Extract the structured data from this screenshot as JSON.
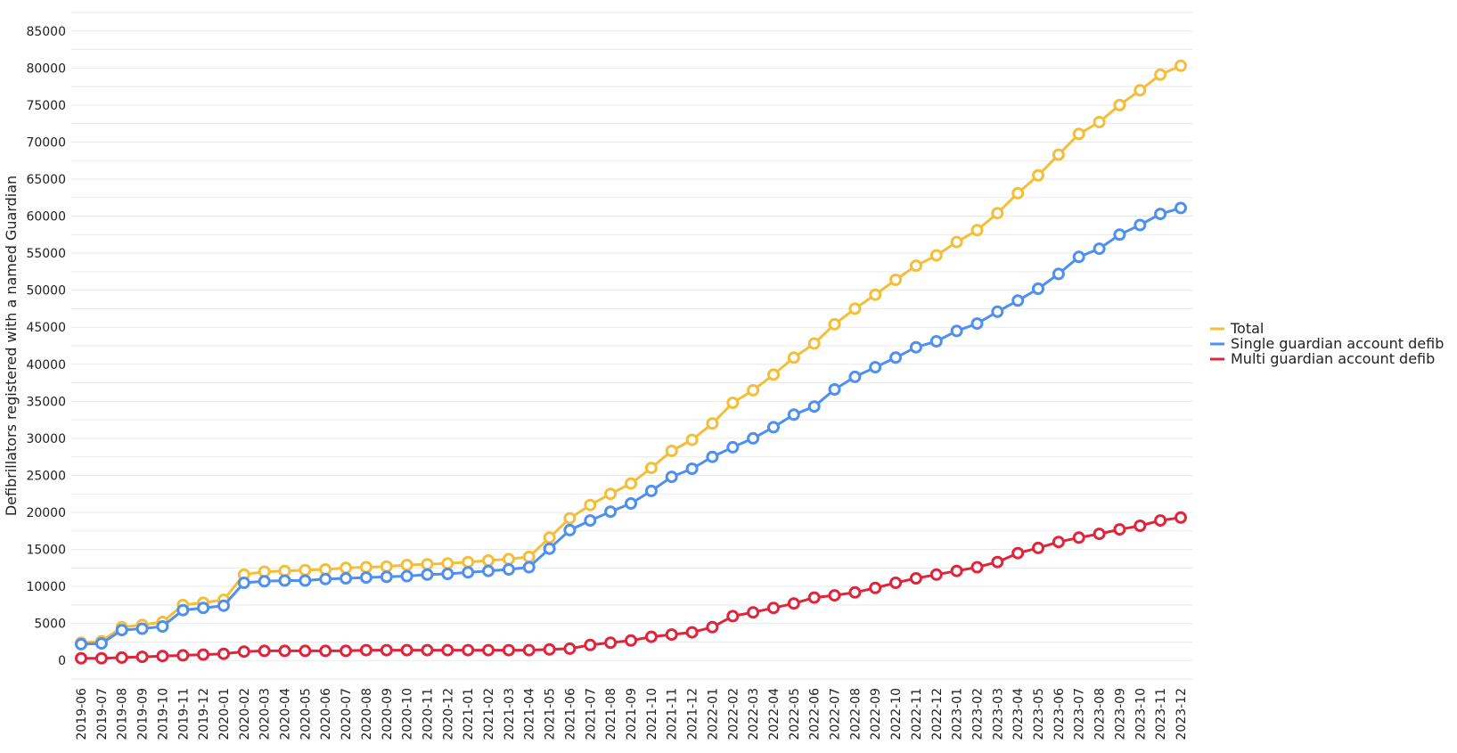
{
  "chart_data": {
    "type": "line",
    "title": "",
    "xlabel": "",
    "ylabel": "Defibrillators registered with a named Guardian",
    "ylim": [
      -2500,
      87500
    ],
    "yticks": [
      0,
      5000,
      10000,
      15000,
      20000,
      25000,
      30000,
      35000,
      40000,
      45000,
      50000,
      55000,
      60000,
      65000,
      70000,
      75000,
      80000,
      85000
    ],
    "grid": true,
    "legend_position": "right",
    "x": [
      "2019-06",
      "2019-07",
      "2019-08",
      "2019-09",
      "2019-10",
      "2019-11",
      "2019-12",
      "2020-01",
      "2020-02",
      "2020-03",
      "2020-04",
      "2020-05",
      "2020-06",
      "2020-07",
      "2020-08",
      "2020-09",
      "2020-10",
      "2020-11",
      "2020-12",
      "2021-01",
      "2021-02",
      "2021-03",
      "2021-04",
      "2021-05",
      "2021-06",
      "2021-07",
      "2021-08",
      "2021-09",
      "2021-10",
      "2021-11",
      "2021-12",
      "2022-01",
      "2022-02",
      "2022-03",
      "2022-04",
      "2022-05",
      "2022-06",
      "2022-07",
      "2022-08",
      "2022-09",
      "2022-10",
      "2022-11",
      "2022-12",
      "2023-01",
      "2023-02",
      "2023-03",
      "2023-04",
      "2023-05",
      "2023-06",
      "2023-07",
      "2023-08",
      "2023-09",
      "2023-10",
      "2023-11",
      "2023-12"
    ],
    "series": [
      {
        "name": "Total",
        "color": "#f5be3a",
        "values": [
          2400,
          2600,
          4500,
          4800,
          5200,
          7500,
          7800,
          8200,
          11600,
          12000,
          12100,
          12200,
          12300,
          12500,
          12600,
          12700,
          12900,
          13000,
          13100,
          13300,
          13500,
          13700,
          14000,
          16600,
          19200,
          21000,
          22500,
          23900,
          26000,
          28300,
          29800,
          32000,
          34800,
          36500,
          38600,
          40900,
          42800,
          45400,
          47500,
          49400,
          51400,
          53300,
          54700,
          56500,
          58100,
          60400,
          63100,
          65500,
          68300,
          71100,
          72700,
          75000,
          77000,
          79100,
          80300
        ]
      },
      {
        "name": "Single guardian account defib",
        "color": "#4e8ff0",
        "values": [
          2200,
          2300,
          4100,
          4300,
          4600,
          6800,
          7100,
          7400,
          10500,
          10700,
          10800,
          10800,
          11000,
          11100,
          11200,
          11300,
          11400,
          11600,
          11700,
          11900,
          12100,
          12300,
          12600,
          15100,
          17600,
          18900,
          20100,
          21200,
          22900,
          24800,
          25900,
          27500,
          28800,
          30000,
          31500,
          33200,
          34300,
          36600,
          38300,
          39600,
          40900,
          42300,
          43100,
          44500,
          45500,
          47100,
          48600,
          50200,
          52200,
          54500,
          55600,
          57500,
          58800,
          60300,
          61100
        ]
      },
      {
        "name": "Multi guardian account defib",
        "color": "#e0243a",
        "values": [
          300,
          300,
          400,
          500,
          600,
          700,
          800,
          900,
          1200,
          1300,
          1300,
          1300,
          1300,
          1300,
          1400,
          1400,
          1400,
          1400,
          1400,
          1400,
          1400,
          1400,
          1400,
          1500,
          1600,
          2100,
          2400,
          2700,
          3200,
          3500,
          3800,
          4500,
          6000,
          6500,
          7100,
          7700,
          8500,
          8800,
          9200,
          9800,
          10500,
          11100,
          11600,
          12100,
          12600,
          13300,
          14500,
          15200,
          16000,
          16600,
          17100,
          17700,
          18200,
          18900,
          19300
        ]
      }
    ]
  }
}
